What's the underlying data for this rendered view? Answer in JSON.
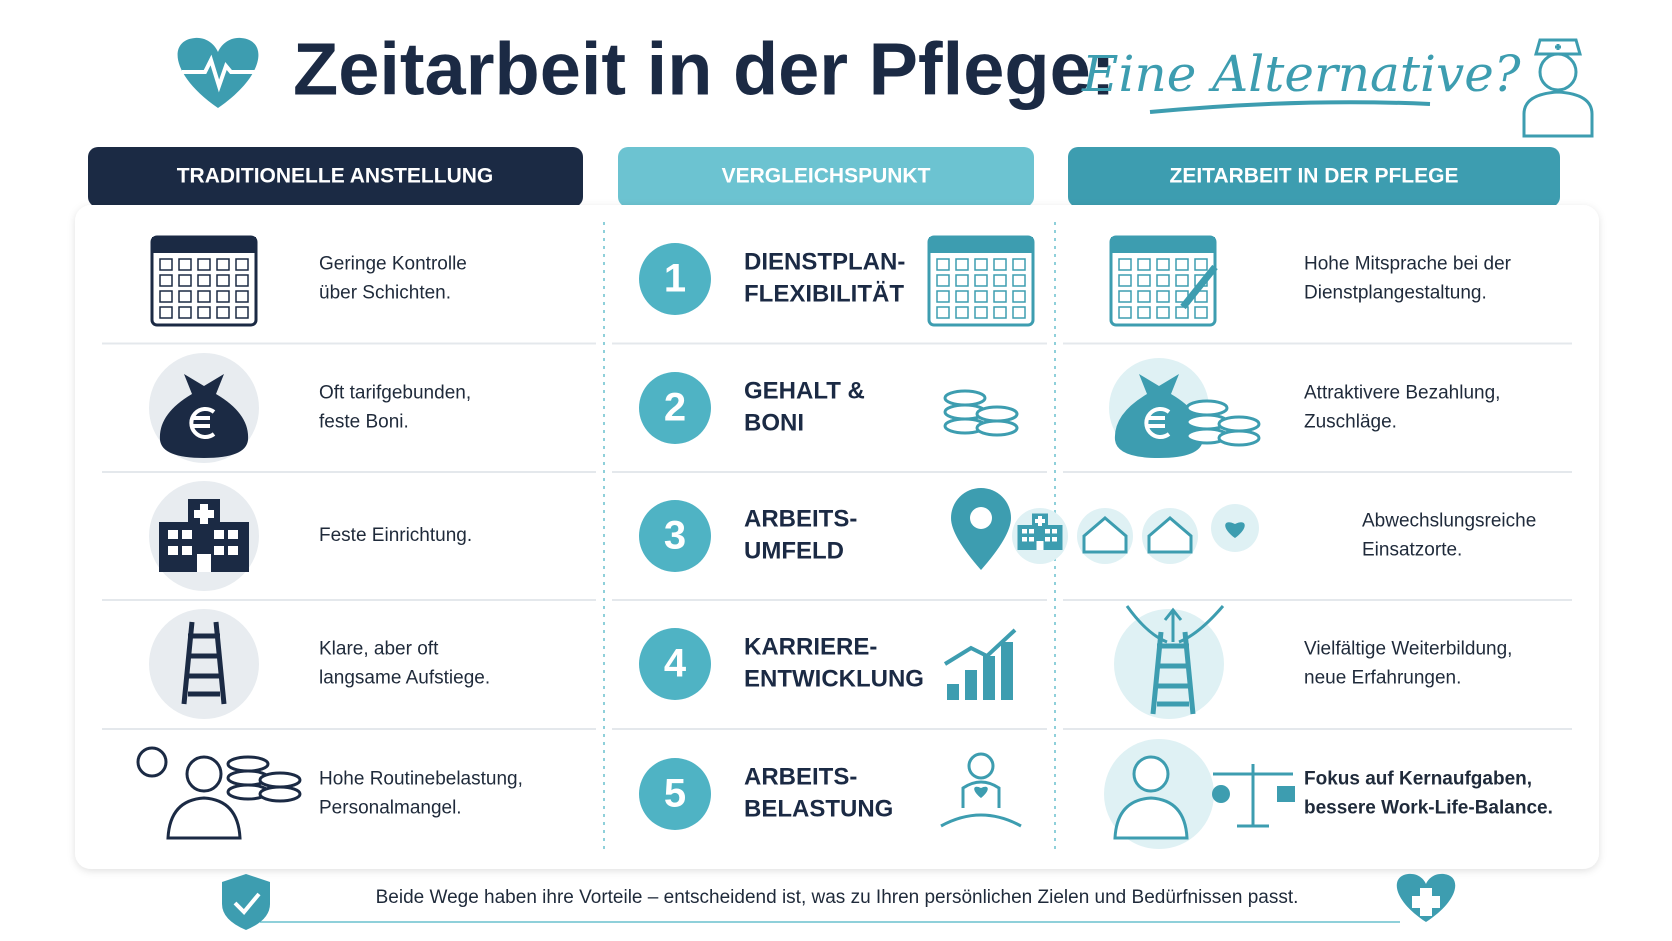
{
  "header": {
    "title": "Zeitarbeit in der Pflege:",
    "subtitle": "Eine Alternative?"
  },
  "columns": [
    "TRADITIONELLE ANSTELLUNG",
    "VERGLEICHSPUNKT",
    "ZEITARBEIT IN DER PFLEGE"
  ],
  "rows": [
    {
      "number": 1,
      "point": [
        "DIENSTPLAN-",
        "FLEXIBILITÄT"
      ],
      "traditional": [
        "Geringe Kontrolle",
        "über Schichten."
      ],
      "temporary": [
        "Hohe Mitsprache bei der",
        "Dienstplangestaltung."
      ]
    },
    {
      "number": 2,
      "point": [
        "GEHALT &",
        "BONI"
      ],
      "traditional": [
        "Oft tarifgebunden,",
        "feste Boni."
      ],
      "temporary": [
        "Attraktivere Bezahlung,",
        "Zuschläge."
      ]
    },
    {
      "number": 3,
      "point": [
        "ARBEITS-",
        "UMFELD"
      ],
      "traditional": [
        "Feste Einrichtung."
      ],
      "temporary": [
        "Abwechslungsreiche",
        "Einsatzorte."
      ]
    },
    {
      "number": 4,
      "point": [
        "KARRIERE-",
        "ENTWICKLUNG"
      ],
      "traditional": [
        "Klare, aber oft",
        "langsame Aufstiege."
      ],
      "temporary": [
        "Vielfältige Weiterbildung,",
        "neue Erfahrungen."
      ]
    },
    {
      "number": 5,
      "point": [
        "ARBEITS-",
        "BELASTUNG"
      ],
      "traditional": [
        "Hohe Routinebelastung,",
        "Personalmangel."
      ],
      "temporary": [
        "Fokus auf Kernaufgaben,",
        "bessere Work-Life-Balance."
      ]
    }
  ],
  "footer": {
    "text": "Beide Wege haben ihre Vorteile – entscheidend ist, was zu Ihren persönlichen Zielen und Bedürfnissen passt."
  }
}
